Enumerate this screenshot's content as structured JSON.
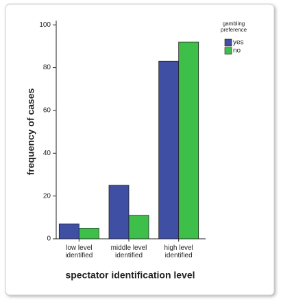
{
  "chart_data": {
    "type": "bar",
    "categories": [
      "low level identified",
      "middle level identified",
      "high level identified"
    ],
    "series": [
      {
        "name": "yes",
        "color": "#3f4fa3",
        "values": [
          7,
          25,
          83
        ]
      },
      {
        "name": "no",
        "color": "#3dbf4a",
        "values": [
          5,
          11,
          92
        ]
      }
    ],
    "xlabel": "spectator identification level",
    "ylabel": "frequency of cases",
    "legend_title": "gambling preference",
    "legend": "top-right",
    "ylim": [
      0,
      102
    ],
    "yticks": [
      0,
      20,
      40,
      60,
      80,
      100
    ]
  }
}
